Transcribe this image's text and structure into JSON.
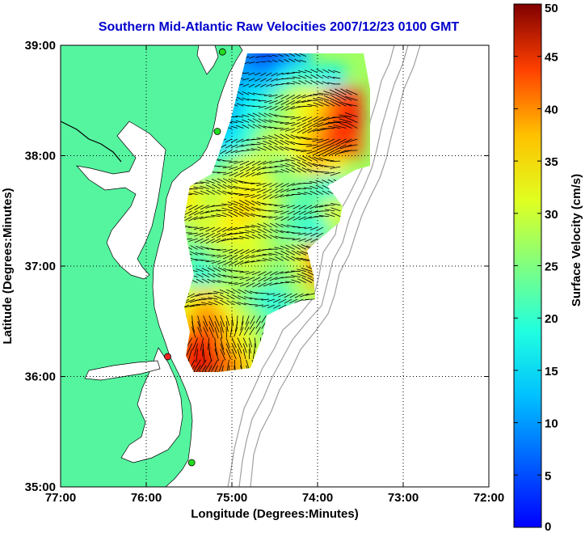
{
  "chart_data": {
    "type": "heatmap",
    "title": "Southern Mid-Atlantic Raw Velocities 2007/12/23 0100 GMT",
    "xlabel": "Longitude (Degrees:Minutes)",
    "ylabel": "Latitude (Degrees:Minutes)",
    "colorbar_label": "Surface Velocity (cm/s)",
    "x_ticks": [
      "77:00",
      "76:00",
      "75:00",
      "74:00",
      "73:00",
      "72:00"
    ],
    "x_values": [
      -77,
      -76,
      -75,
      -74,
      -73,
      -72
    ],
    "y_ticks": [
      "39:00",
      "38:00",
      "37:00",
      "36:00",
      "35:00"
    ],
    "y_values": [
      39,
      38,
      37,
      36,
      35
    ],
    "xlim": [
      -77,
      -72
    ],
    "ylim": [
      35,
      39
    ],
    "clim": [
      0,
      50
    ],
    "colorbar_ticks": [
      "50",
      "45",
      "40",
      "35",
      "30",
      "25",
      "20",
      "15",
      "10",
      "5",
      "0"
    ],
    "colorbar_values": [
      50,
      45,
      40,
      35,
      30,
      25,
      20,
      15,
      10,
      5,
      0
    ],
    "grid": true,
    "colormap": "jet",
    "colors": {
      "land": "#55f5a0",
      "title": "#0000cc",
      "site_active": "#22dd22",
      "site_alert": "#ee2222"
    },
    "sites": [
      {
        "lon": -75.11,
        "lat": 38.94,
        "status": "active"
      },
      {
        "lon": -75.17,
        "lat": 38.22,
        "status": "active"
      },
      {
        "lon": -75.75,
        "lat": 36.18,
        "status": "alert"
      },
      {
        "lon": -75.47,
        "lat": 35.22,
        "status": "active"
      }
    ],
    "field_speeds": [
      [
        38.9,
        [
          -75.0,
          -74.8,
          -74.6,
          -74.4,
          -74.2
        ],
        [
          14,
          12,
          8,
          10,
          16
        ]
      ],
      [
        38.7,
        [
          -75.0,
          -74.8,
          -74.6,
          -74.4,
          -74.2,
          -74.0,
          -73.8
        ],
        [
          13,
          15,
          14,
          18,
          22,
          20,
          18
        ]
      ],
      [
        38.5,
        [
          -75.0,
          -74.8,
          -74.6,
          -74.4,
          -74.2,
          -74.0,
          -73.8,
          -73.6
        ],
        [
          14,
          18,
          20,
          26,
          30,
          32,
          38,
          42
        ]
      ],
      [
        38.3,
        [
          -75.2,
          -75.0,
          -74.8,
          -74.6,
          -74.4,
          -74.2,
          -74.0,
          -73.8,
          -73.6
        ],
        [
          14,
          16,
          20,
          24,
          26,
          30,
          34,
          40,
          44
        ]
      ],
      [
        38.1,
        [
          -75.2,
          -75.0,
          -74.8,
          -74.6,
          -74.4,
          -74.2,
          -74.0,
          -73.8,
          -73.6
        ],
        [
          16,
          18,
          22,
          28,
          30,
          32,
          36,
          42,
          40
        ]
      ],
      [
        37.9,
        [
          -75.4,
          -75.2,
          -75.0,
          -74.8,
          -74.6,
          -74.4,
          -74.2,
          -74.0,
          -73.8
        ],
        [
          18,
          22,
          26,
          30,
          28,
          24,
          30,
          34,
          32
        ]
      ],
      [
        37.7,
        [
          -75.6,
          -75.4,
          -75.2,
          -75.0,
          -74.8,
          -74.6,
          -74.4,
          -74.2,
          -74.0,
          -73.8
        ],
        [
          34,
          30,
          28,
          30,
          32,
          30,
          26,
          24,
          22,
          20
        ]
      ],
      [
        37.5,
        [
          -75.6,
          -75.4,
          -75.2,
          -75.0,
          -74.8,
          -74.6,
          -74.4,
          -74.2,
          -74.0,
          -73.8
        ],
        [
          32,
          30,
          28,
          32,
          34,
          30,
          26,
          22,
          24,
          30
        ]
      ],
      [
        37.3,
        [
          -75.6,
          -75.4,
          -75.2,
          -75.0,
          -74.8,
          -74.6,
          -74.4,
          -74.2,
          -74.0
        ],
        [
          24,
          28,
          30,
          32,
          30,
          28,
          24,
          22,
          20
        ]
      ],
      [
        37.1,
        [
          -75.4,
          -75.2,
          -75.0,
          -74.8,
          -74.6,
          -74.4,
          -74.2,
          -74.0
        ],
        [
          22,
          26,
          28,
          30,
          28,
          26,
          30,
          38
        ]
      ],
      [
        36.9,
        [
          -75.4,
          -75.2,
          -75.0,
          -74.8,
          -74.6,
          -74.4,
          -74.2,
          -74.0
        ],
        [
          20,
          22,
          26,
          28,
          26,
          24,
          28,
          36
        ]
      ],
      [
        36.7,
        [
          -75.5,
          -75.3,
          -75.1,
          -74.9,
          -74.7,
          -74.5,
          -74.3,
          -74.1
        ],
        [
          30,
          34,
          30,
          26,
          22,
          20,
          24,
          28
        ]
      ],
      [
        36.5,
        [
          -75.6,
          -75.4,
          -75.2,
          -75.0,
          -74.8,
          -74.6,
          -74.4,
          -74.2
        ],
        [
          32,
          36,
          38,
          32,
          28,
          24,
          20,
          18
        ]
      ],
      [
        36.3,
        [
          -75.6,
          -75.4,
          -75.2,
          -75.0,
          -74.8,
          -74.6,
          -74.4
        ],
        [
          38,
          44,
          40,
          34,
          30,
          26,
          20
        ]
      ],
      [
        36.1,
        [
          -75.5,
          -75.3,
          -75.1,
          -74.9,
          -74.7
        ],
        [
          42,
          46,
          40,
          36,
          30
        ]
      ]
    ]
  }
}
